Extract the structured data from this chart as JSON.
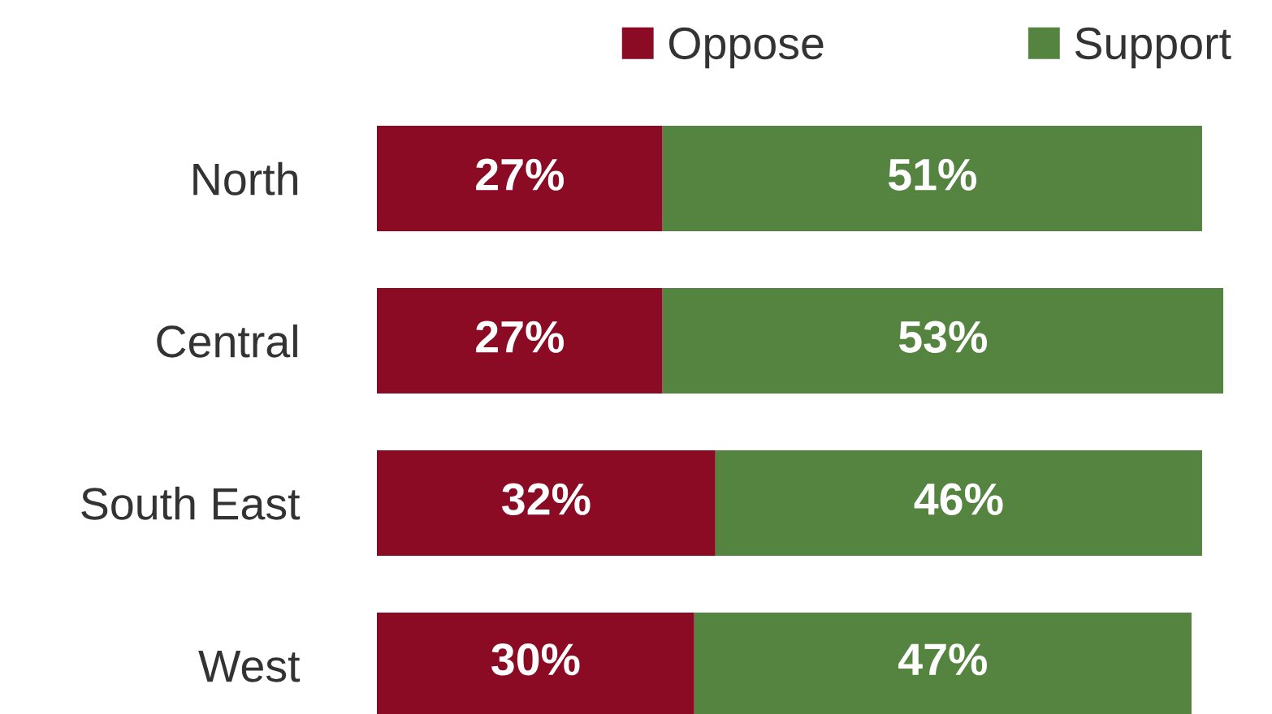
{
  "chart_data": {
    "type": "bar",
    "orientation": "horizontal",
    "stacked": true,
    "categories": [
      "North",
      "Central",
      "South East",
      "West"
    ],
    "series": [
      {
        "name": "Oppose",
        "color": "#8b0a24",
        "values": [
          27,
          27,
          32,
          30
        ],
        "value_labels": [
          "27%",
          "27%",
          "32%",
          "30%"
        ]
      },
      {
        "name": "Support",
        "color": "#548440",
        "values": [
          51,
          53,
          46,
          47
        ],
        "value_labels": [
          "51%",
          "53%",
          "46%",
          "47%"
        ]
      }
    ],
    "legend": "top right",
    "grid": false
  }
}
